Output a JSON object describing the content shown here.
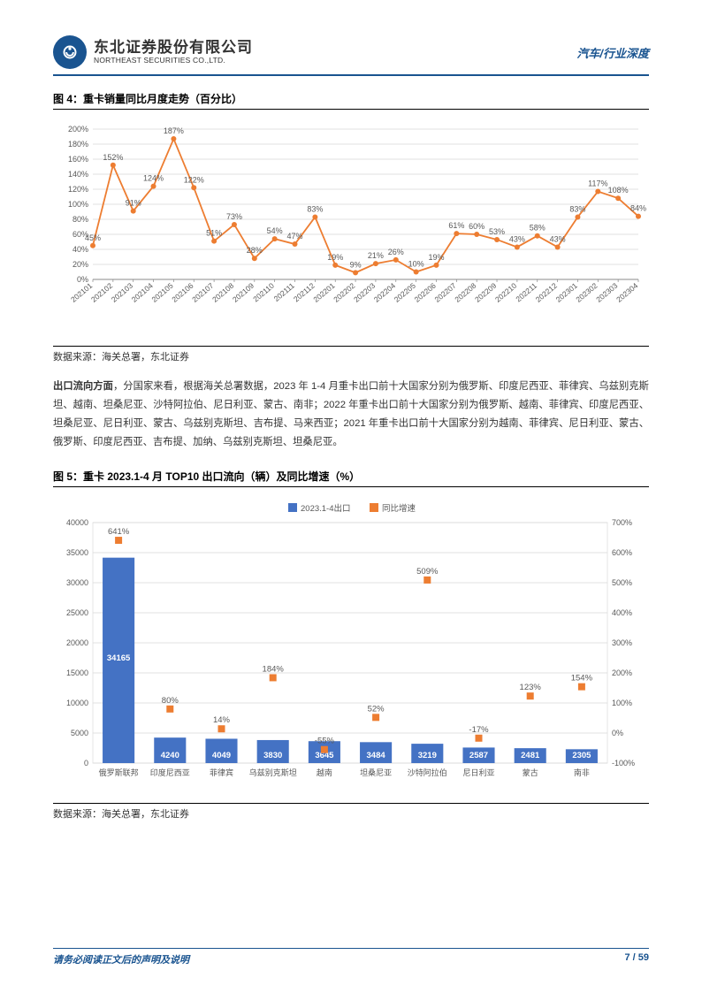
{
  "header": {
    "company_cn": "东北证券股份有限公司",
    "company_en": "NORTHEAST SECURITIES CO.,LTD.",
    "section": "汽车/行业深度"
  },
  "chart4": {
    "type": "line",
    "title": "图 4：重卡销量同比月度走势（百分比）",
    "source": "数据来源：海关总署，东北证券",
    "x_labels": [
      "202101",
      "202102",
      "202103",
      "202104",
      "202105",
      "202106",
      "202107",
      "202108",
      "202109",
      "202110",
      "202111",
      "202112",
      "202201",
      "202202",
      "202203",
      "202204",
      "202205",
      "202206",
      "202207",
      "202208",
      "202209",
      "202210",
      "202211",
      "202212",
      "202301",
      "202302",
      "202303",
      "202304"
    ],
    "values": [
      45,
      152,
      91,
      124,
      187,
      122,
      51,
      73,
      28,
      54,
      47,
      83,
      19,
      9,
      21,
      26,
      10,
      19,
      61,
      60,
      53,
      43,
      58,
      43,
      83,
      117,
      108,
      84
    ],
    "point_labels": [
      "45%",
      "152%",
      "91%",
      "124%",
      "187%",
      "122%",
      "51%",
      "73%",
      "28%",
      "54%",
      "47%",
      "83%",
      "19%",
      "9%",
      "21%",
      "26%",
      "10%",
      "19%",
      "61%",
      "60%",
      "53%",
      "43%",
      "58%",
      "43%",
      "83%",
      "117%",
      "108%",
      "84%"
    ],
    "y_ticks": [
      0,
      20,
      40,
      60,
      80,
      100,
      120,
      140,
      160,
      180,
      200
    ],
    "y_tick_labels": [
      "0%",
      "20%",
      "40%",
      "60%",
      "80%",
      "100%",
      "120%",
      "140%",
      "160%",
      "180%",
      "200%"
    ],
    "ylim": [
      0,
      200
    ],
    "line_color": "#ed7d31",
    "marker_color": "#ed7d31",
    "label_color": "#595959",
    "grid_color": "#d9d9d9",
    "axis_font_size": 9,
    "point_label_font_size": 9
  },
  "body": {
    "text": "出口流向方面，分国家来看，根据海关总署数据，2023 年 1-4 月重卡出口前十大国家分别为俄罗斯、印度尼西亚、菲律宾、乌兹别克斯坦、越南、坦桑尼亚、沙特阿拉伯、尼日利亚、蒙古、南非；2022 年重卡出口前十大国家分别为俄罗斯、越南、菲律宾、印度尼西亚、坦桑尼亚、尼日利亚、蒙古、乌兹别克斯坦、吉布提、马来西亚；2021 年重卡出口前十大国家分别为越南、菲律宾、尼日利亚、蒙古、俄罗斯、印度尼西亚、吉布提、加纳、乌兹别克斯坦、坦桑尼亚。",
    "bold_lead": "出口流向方面"
  },
  "chart5": {
    "type": "bar+scatter",
    "title": "图 5：重卡 2023.1-4 月 TOP10 出口流向（辆）及同比增速（%）",
    "source": "数据来源：海关总署，东北证券",
    "legend_bar": "2023.1-4出口",
    "legend_scatter": "同比增速",
    "categories": [
      "俄罗斯联邦",
      "印度尼西亚",
      "菲律宾",
      "乌兹别克斯坦",
      "越南",
      "坦桑尼亚",
      "沙特阿拉伯",
      "尼日利亚",
      "蒙古",
      "南非"
    ],
    "bar_values": [
      34165,
      4240,
      4049,
      3830,
      3645,
      3484,
      3219,
      2587,
      2481,
      2305
    ],
    "scatter_values": [
      641,
      80,
      14,
      184,
      -55,
      52,
      509,
      -17,
      123,
      154
    ],
    "scatter_labels": [
      "641%",
      "80%",
      "14%",
      "184%",
      "-55%",
      "52%",
      "509%",
      "-17%",
      "123%",
      "154%"
    ],
    "y1_ticks": [
      0,
      5000,
      10000,
      15000,
      20000,
      25000,
      30000,
      35000,
      40000
    ],
    "y1_lim": [
      0,
      40000
    ],
    "y2_ticks": [
      -100,
      0,
      100,
      200,
      300,
      400,
      500,
      600,
      700
    ],
    "y2_tick_labels": [
      "-100%",
      "0%",
      "100%",
      "200%",
      "300%",
      "400%",
      "500%",
      "600%",
      "700%"
    ],
    "y2_lim": [
      -100,
      700
    ],
    "bar_color": "#4472c4",
    "scatter_color": "#ed7d31",
    "grid_color": "#d9d9d9",
    "bg_grid": "#d9d9d9",
    "axis_font_size": 9,
    "cat_font_size": 9,
    "bar_label_color": "#ffffff"
  },
  "footer": {
    "left": "请务必阅读正文后的声明及说明",
    "right": "7 / 59"
  }
}
